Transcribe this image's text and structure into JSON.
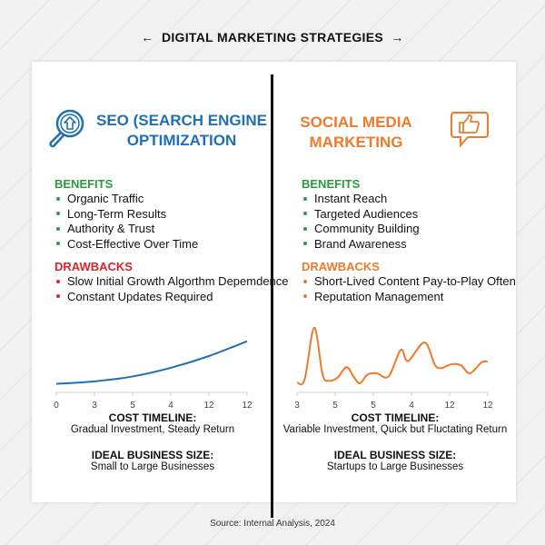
{
  "title": "DIGITAL MARKETING STRATEGIES",
  "nav": {
    "prev_icon": "arrow-left-icon",
    "next_icon": "arrow-right-icon",
    "prev": "←",
    "next": "→"
  },
  "colors": {
    "seo": "#1f6fb5",
    "social": "#ef7a2a",
    "benefits": "#2e9a3e",
    "seo_drawbacks": "#d7262e",
    "social_drawbacks": "#ef7a2a"
  },
  "seo": {
    "icon": "magnifier-upload-icon",
    "title_line1": "SEO (SEARCH ENGINE",
    "title_line2": "OPTIMIZATION",
    "benefits_label": "BENEFITS",
    "benefits": [
      "Organic Traffic",
      "Long-Term Results",
      "Authority & Trust",
      "Cost-Effective Over Time"
    ],
    "drawbacks_label": "DRAWBACKS",
    "drawbacks": [
      "Slow Initial Growth Algorthm Depemdence",
      "Constant Updates Required"
    ],
    "cost_label": "COST TIMELINE:",
    "cost_text": "Gradual Investment, Steady Return",
    "size_label": "IDEAL BUSINESS SIZE:",
    "size_text": "Small to Large Businesses"
  },
  "social": {
    "icon": "thumbs-up-speech-bubble-icon",
    "title_line1": "SOCIAL MEDIA",
    "title_line2": "MARKETING",
    "benefits_label": "BENEFITS",
    "benefits": [
      "Instant Reach",
      "Targeted Audiences",
      "Community Building",
      "Brand Awareness"
    ],
    "drawbacks_label": "DRAWBACKS",
    "drawbacks": [
      "Short-Lived Content Pay-to-Play Often",
      "Reputation Management"
    ],
    "cost_label": "COST TIMELINE:",
    "cost_text": "Variable Investment, Quick but Fluctating Return",
    "size_label": "IDEAL BUSINESS SIZE:",
    "size_text": "Startups to Large Businesses"
  },
  "chart_data": [
    {
      "type": "line",
      "series_color": "#1f6fb5",
      "tick_labels": [
        "0",
        "3",
        "5",
        "4",
        "12",
        "12"
      ],
      "x": [
        0,
        1,
        2,
        3,
        4,
        5
      ],
      "values": [
        5,
        9,
        17,
        31,
        50,
        74
      ],
      "ylim": [
        0,
        100
      ],
      "grid": false
    },
    {
      "type": "line",
      "series_color": "#ef7a2a",
      "tick_labels": [
        "3",
        "5",
        "5",
        "4",
        "12",
        "12"
      ],
      "x": [
        0,
        0.2,
        0.45,
        0.67,
        0.83,
        1.06,
        1.3,
        1.5,
        1.65,
        1.85,
        2.09,
        2.4,
        2.72,
        2.91,
        3.35,
        3.66,
        4.06,
        4.3,
        4.53,
        4.84,
        5
      ],
      "values": [
        7,
        12,
        96,
        20,
        10,
        15,
        32,
        15,
        6,
        20,
        22,
        17,
        60,
        42,
        72,
        32,
        37,
        35,
        22,
        40,
        41
      ],
      "ylim": [
        0,
        100
      ],
      "grid": false
    }
  ],
  "source": "Source: Internal Analysis, 2024"
}
